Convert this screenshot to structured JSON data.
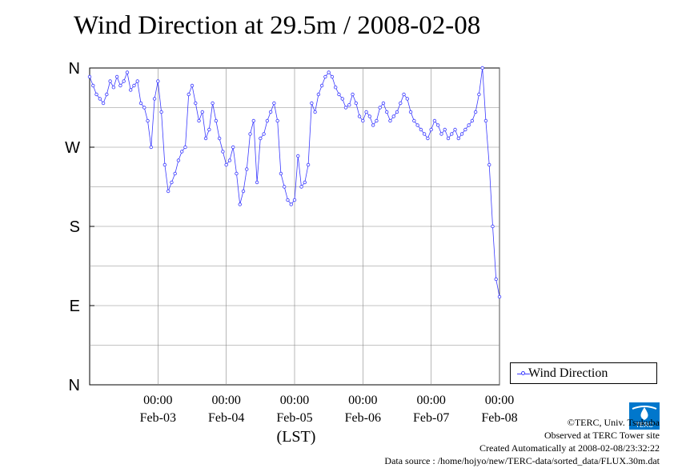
{
  "page": {
    "title": "Wind Direction at 29.5m / 2008-02-08",
    "footer": {
      "copyright": "©TERC, Univ. Tsukuba",
      "observed": "Observed at TERC Tower site",
      "created": "Created Automatically at 2008-02-08/23:32:22",
      "source": "Data source : /home/hojyo/new/TERC-data/sorted_data/FLUX.30m.dat"
    },
    "logo_text": "TERC"
  },
  "chart_data": {
    "type": "line",
    "title": "Wind Direction at 29.5m / 2008-02-08",
    "xlabel": "(LST)",
    "ylabel": "",
    "ylim": [
      0,
      360
    ],
    "xlim": [
      0,
      6
    ],
    "grid": true,
    "legend_position": "bottom-right",
    "y_ticks": [
      {
        "value": 0,
        "label": "N"
      },
      {
        "value": 90,
        "label": "E"
      },
      {
        "value": 180,
        "label": "S"
      },
      {
        "value": 270,
        "label": "W"
      },
      {
        "value": 360,
        "label": "N"
      }
    ],
    "x_tick_labels": [
      {
        "value": 1,
        "time": "00:00",
        "date": "Feb-03"
      },
      {
        "value": 2,
        "time": "00:00",
        "date": "Feb-04"
      },
      {
        "value": 3,
        "time": "00:00",
        "date": "Feb-05"
      },
      {
        "value": 4,
        "time": "00:00",
        "date": "Feb-06"
      },
      {
        "value": 5,
        "time": "00:00",
        "date": "Feb-07"
      },
      {
        "value": 6,
        "time": "00:00",
        "date": "Feb-08"
      }
    ],
    "series": [
      {
        "name": "Wind Direction",
        "color": "#3a3aff",
        "x": [
          0.0,
          0.05,
          0.1,
          0.15,
          0.2,
          0.25,
          0.3,
          0.35,
          0.4,
          0.45,
          0.5,
          0.55,
          0.6,
          0.65,
          0.7,
          0.75,
          0.8,
          0.85,
          0.9,
          0.95,
          1.0,
          1.05,
          1.1,
          1.15,
          1.2,
          1.25,
          1.3,
          1.35,
          1.4,
          1.45,
          1.5,
          1.55,
          1.6,
          1.65,
          1.7,
          1.75,
          1.8,
          1.85,
          1.9,
          1.95,
          2.0,
          2.05,
          2.1,
          2.15,
          2.2,
          2.25,
          2.3,
          2.35,
          2.4,
          2.45,
          2.5,
          2.55,
          2.6,
          2.65,
          2.7,
          2.75,
          2.8,
          2.85,
          2.9,
          2.95,
          3.0,
          3.05,
          3.1,
          3.15,
          3.2,
          3.25,
          3.3,
          3.35,
          3.4,
          3.45,
          3.5,
          3.55,
          3.6,
          3.65,
          3.7,
          3.75,
          3.8,
          3.85,
          3.9,
          3.95,
          4.0,
          4.05,
          4.1,
          4.15,
          4.2,
          4.25,
          4.3,
          4.35,
          4.4,
          4.45,
          4.5,
          4.55,
          4.6,
          4.65,
          4.7,
          4.75,
          4.8,
          4.85,
          4.9,
          4.95,
          5.0,
          5.05,
          5.1,
          5.15,
          5.2,
          5.25,
          5.3,
          5.35,
          5.4,
          5.45,
          5.5,
          5.55,
          5.6,
          5.65,
          5.7,
          5.75,
          5.8,
          5.85,
          5.9,
          5.95,
          6.0
        ],
        "values": [
          350,
          340,
          330,
          325,
          320,
          330,
          345,
          338,
          350,
          340,
          345,
          355,
          335,
          340,
          345,
          320,
          315,
          300,
          270,
          325,
          345,
          310,
          250,
          220,
          230,
          240,
          255,
          265,
          270,
          330,
          340,
          320,
          300,
          310,
          280,
          290,
          320,
          300,
          280,
          265,
          250,
          255,
          270,
          240,
          205,
          220,
          245,
          285,
          300,
          230,
          280,
          285,
          300,
          310,
          320,
          300,
          240,
          225,
          210,
          205,
          210,
          260,
          225,
          230,
          250,
          320,
          310,
          330,
          340,
          350,
          355,
          350,
          338,
          330,
          325,
          315,
          318,
          330,
          320,
          305,
          300,
          310,
          305,
          295,
          300,
          315,
          320,
          310,
          300,
          305,
          310,
          320,
          330,
          325,
          310,
          300,
          295,
          290,
          285,
          280,
          290,
          300,
          295,
          285,
          290,
          280,
          285,
          290,
          280,
          285,
          290,
          295,
          300,
          310,
          330,
          360,
          300,
          250,
          180,
          120,
          100
        ]
      }
    ]
  }
}
